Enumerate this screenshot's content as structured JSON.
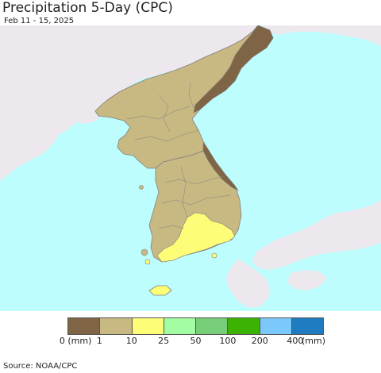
{
  "header": {
    "title": "Precipitation 5-Day (CPC)",
    "date_range": "Feb 11 - 15, 2025"
  },
  "colors": {
    "ocean": "#bdfdfd",
    "foreign_land": "#ede8ee",
    "border_lines": "#808080"
  },
  "legend": {
    "unit_label": "(mm)",
    "categories": [
      {
        "label": "0",
        "color": "#7f6545"
      },
      {
        "label": "1",
        "color": "#c8b882"
      },
      {
        "label": "10",
        "color": "#fdfd78"
      },
      {
        "label": "25",
        "color": "#a3fda3"
      },
      {
        "label": "50",
        "color": "#78cd78"
      },
      {
        "label": "100",
        "color": "#3cb302"
      },
      {
        "label": "200",
        "color": "#7bc8fb"
      },
      {
        "label": "400",
        "color": "#1f7cc0"
      }
    ]
  },
  "footer": {
    "source": "Source: NOAA/CPC"
  }
}
